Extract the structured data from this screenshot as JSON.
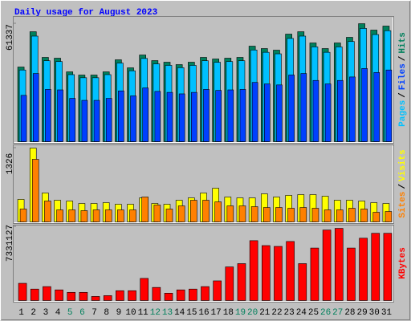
{
  "chart_data": {
    "type": "bar",
    "title": "Daily usage for August 2023",
    "separator": "/",
    "categories": [
      "1",
      "2",
      "3",
      "4",
      "5",
      "6",
      "7",
      "8",
      "9",
      "10",
      "11",
      "12",
      "13",
      "14",
      "15",
      "16",
      "17",
      "18",
      "19",
      "20",
      "21",
      "22",
      "23",
      "24",
      "25",
      "26",
      "27",
      "28",
      "29",
      "30",
      "31"
    ],
    "label_colors": [
      "#000000",
      "#000000",
      "#000000",
      "#000000",
      "#00805c",
      "#00805c",
      "#000000",
      "#000000",
      "#000000",
      "#000000",
      "#000000",
      "#00805c",
      "#00805c",
      "#000000",
      "#000000",
      "#000000",
      "#000000",
      "#000000",
      "#00805c",
      "#00805c",
      "#000000",
      "#000000",
      "#000000",
      "#000000",
      "#000000",
      "#00805c",
      "#00805c",
      "#000000",
      "#000000",
      "#000000",
      "#000000"
    ],
    "panels": [
      {
        "ylim": [
          0,
          61337
        ],
        "yticks": [
          61337
        ],
        "series": [
          {
            "name": "Hits",
            "color": "#00805c",
            "values": [
              38800,
              57160,
              43810,
              43400,
              36300,
              34630,
              34630,
              36300,
              42560,
              38390,
              45060,
              42140,
              41310,
              40060,
              41310,
              43810,
              42980,
              43400,
              43810,
              49650,
              48400,
              47570,
              55910,
              57160,
              51320,
              48400,
              51320,
              54240,
              61337,
              58000,
              60090
            ]
          },
          {
            "name": "Files",
            "color": "#0040ff",
            "values": [
              24060,
              35440,
              27160,
              26910,
              22510,
              21470,
              21470,
              22510,
              26390,
              23800,
              27940,
              26130,
              25610,
              24840,
              25610,
              27160,
              26650,
              26910,
              27160,
              30780,
              30010,
              29490,
              34660,
              35440,
              31820,
              30010,
              31820,
              33630,
              38030,
              35960,
              37260
            ]
          },
          {
            "name": "Pages",
            "color": "#00c0ff",
            "values": [
              37250,
              54870,
              42060,
              41660,
              34850,
              33240,
              33240,
              34850,
              40860,
              36850,
              43260,
              40450,
              39660,
              38460,
              39660,
              42060,
              41260,
              41660,
              42060,
              47660,
              46460,
              45670,
              53670,
              54870,
              49270,
              46460,
              49270,
              52070,
              58880,
              55680,
              57690
            ]
          }
        ]
      },
      {
        "ylim": [
          0,
          1326
        ],
        "yticks": [
          1326
        ],
        "series": [
          {
            "name": "Visits",
            "color": "#ffff00",
            "values": [
              404,
              1326,
              519,
              389,
              375,
              331,
              331,
              346,
              317,
              317,
              432,
              331,
              317,
              389,
              432,
              519,
              605,
              447,
              432,
              432,
              504,
              447,
              476,
              490,
              490,
              461,
              389,
              389,
              375,
              346,
              331
            ]
          },
          {
            "name": "Sites",
            "color": "#ff8000",
            "values": [
              231,
              1124,
              375,
              216,
              216,
              202,
              216,
              216,
              216,
              216,
              447,
              303,
              231,
              288,
              389,
              389,
              360,
              288,
              288,
              274,
              259,
              259,
              245,
              259,
              245,
              216,
              216,
              245,
              231,
              173,
              187
            ]
          }
        ]
      },
      {
        "ylim": [
          0,
          7331127
        ],
        "yticks": [
          7331127
        ],
        "series": [
          {
            "name": "KBytes",
            "color": "#ff0000",
            "values": [
              1710600,
              1140400,
              1384800,
              1058900,
              814600,
              814600,
              407300,
              488700,
              977500,
              977500,
              2199300,
              1303300,
              733100,
              1058900,
              1140400,
              1384800,
              1955000,
              3339700,
              3665600,
              5946400,
              5457600,
              5376200,
              5864900,
              3665600,
              5213200,
              7005300,
              7168200,
              5213200,
              6190700,
              6679500,
              6679500
            ]
          }
        ]
      }
    ]
  }
}
